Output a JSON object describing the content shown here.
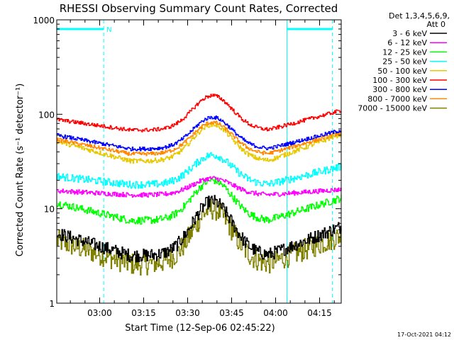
{
  "chart_data": {
    "type": "line",
    "title": "RHESSI Observing Summary Count Rates, Corrected",
    "xlabel": "Start Time (12-Sep-06 02:45:22)",
    "ylabel": "Corrected Count Rate (s⁻¹ detector⁻¹)",
    "ylog": true,
    "ylim": [
      1,
      1000
    ],
    "xlim_minutes": [
      0,
      97
    ],
    "yticks": [
      {
        "value": 1,
        "label": "1"
      },
      {
        "value": 10,
        "label": "10"
      },
      {
        "value": 100,
        "label": "100"
      },
      {
        "value": 1000,
        "label": "1000"
      }
    ],
    "xticks": [
      {
        "minute": 14.63,
        "label": "03:00"
      },
      {
        "minute": 29.63,
        "label": "03:15"
      },
      {
        "minute": 44.63,
        "label": "03:30"
      },
      {
        "minute": 59.63,
        "label": "03:45"
      },
      {
        "minute": 74.63,
        "label": "04:00"
      },
      {
        "minute": 89.63,
        "label": "04:15"
      }
    ],
    "legend": {
      "header1": "Det 1,3,4,5,6,9,",
      "header2": "Att 0",
      "placement": "right"
    },
    "night_flags": [
      {
        "start": 0,
        "end": 16,
        "label": "N"
      },
      {
        "start": 78.5,
        "end": 94,
        "label": ""
      }
    ],
    "series": [
      {
        "name": "3 - 6 keV",
        "color": "#000000",
        "min": 3.2,
        "peak": 12,
        "start": 5.5,
        "end": 6.5,
        "noise": 0.07
      },
      {
        "name": "6 - 12 keV",
        "color": "#ff00ff",
        "min": 14,
        "peak": 21,
        "start": 15.5,
        "end": 16,
        "noise": 0.025
      },
      {
        "name": "12 - 25 keV",
        "color": "#00ff00",
        "min": 7.5,
        "peak": 20,
        "start": 11.5,
        "end": 13,
        "noise": 0.04
      },
      {
        "name": "25 - 50 keV",
        "color": "#00ffff",
        "min": 18,
        "peak": 37,
        "start": 22,
        "end": 28,
        "noise": 0.04
      },
      {
        "name": "50 - 100 keV",
        "color": "#e8c800",
        "min": 32,
        "peak": 78,
        "start": 52,
        "end": 62,
        "noise": 0.025
      },
      {
        "name": "100 - 300 keV",
        "color": "#ff0000",
        "min": 68,
        "peak": 158,
        "start": 88,
        "end": 110,
        "noise": 0.02
      },
      {
        "name": "300 - 800 keV",
        "color": "#0000ff",
        "min": 43,
        "peak": 93,
        "start": 60,
        "end": 68,
        "noise": 0.02
      },
      {
        "name": "800 - 7000 keV",
        "color": "#ff8800",
        "min": 38,
        "peak": 82,
        "start": 54,
        "end": 64,
        "noise": 0.02
      },
      {
        "name": "7000 - 15000 keV",
        "color": "#808000",
        "min": 2.6,
        "peak": 10,
        "start": 4.6,
        "end": 5.2,
        "noise": 0.12
      }
    ]
  },
  "footer": {
    "timestamp": "17-Oct-2021 04:12"
  }
}
